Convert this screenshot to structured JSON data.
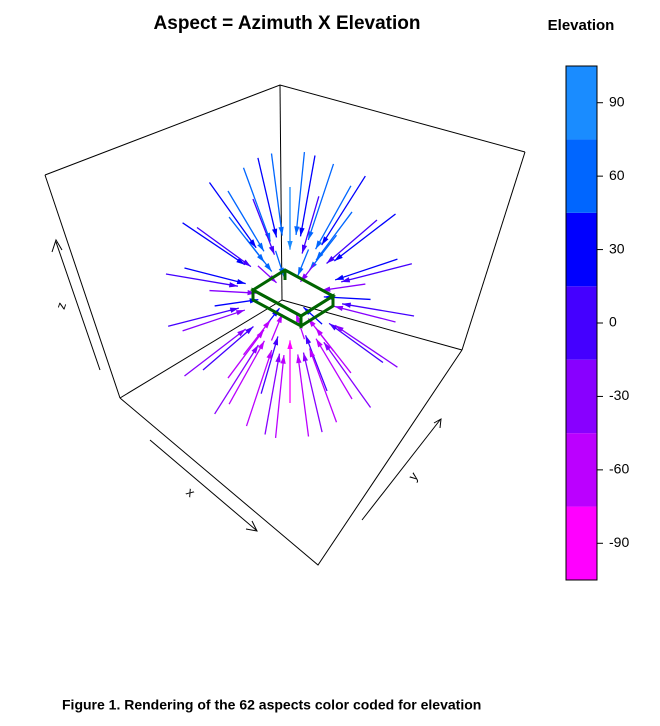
{
  "chart_data": {
    "type": "arrows3d",
    "title": "Aspect = Azimuth X Elevation",
    "x_label": "x",
    "y_label": "y",
    "z_label": "z",
    "azimuth": [
      0,
      0,
      30,
      60,
      90,
      120,
      150,
      180,
      210,
      240,
      270,
      300,
      330,
      0,
      30,
      60,
      90,
      120,
      150,
      180,
      210,
      240,
      270,
      300,
      330,
      0,
      30,
      60,
      90,
      120,
      150,
      180,
      210,
      240,
      270,
      300,
      330,
      0,
      30,
      60,
      90,
      120,
      150,
      180,
      210,
      240,
      270,
      300,
      330,
      0,
      30,
      60,
      90,
      120,
      150,
      180,
      210,
      240,
      270,
      300,
      330,
      0
    ],
    "elevation": [
      90,
      60,
      60,
      60,
      60,
      60,
      60,
      60,
      60,
      60,
      60,
      60,
      60,
      30,
      30,
      30,
      30,
      30,
      30,
      30,
      30,
      30,
      30,
      30,
      30,
      0,
      0,
      0,
      0,
      0,
      0,
      0,
      0,
      0,
      0,
      0,
      0,
      -30,
      -30,
      -30,
      -30,
      -30,
      -30,
      -30,
      -30,
      -30,
      -30,
      -30,
      -30,
      -60,
      -60,
      -60,
      -60,
      -60,
      -60,
      -60,
      -60,
      -60,
      -60,
      -60,
      -60,
      -90
    ],
    "colorbar": {
      "title": "Elevation",
      "lim": [
        -105,
        105
      ],
      "ticks": [
        -90,
        -60,
        -30,
        0,
        30,
        60,
        90
      ],
      "colors": [
        "#ff00ff",
        "#bb00ff",
        "#8800ff",
        "#4400ff",
        "#0000ff",
        "#0066ff",
        "#1a8cff"
      ]
    }
  },
  "caption": "Figure 1.  Rendering of the 62 aspects color coded for elevation"
}
